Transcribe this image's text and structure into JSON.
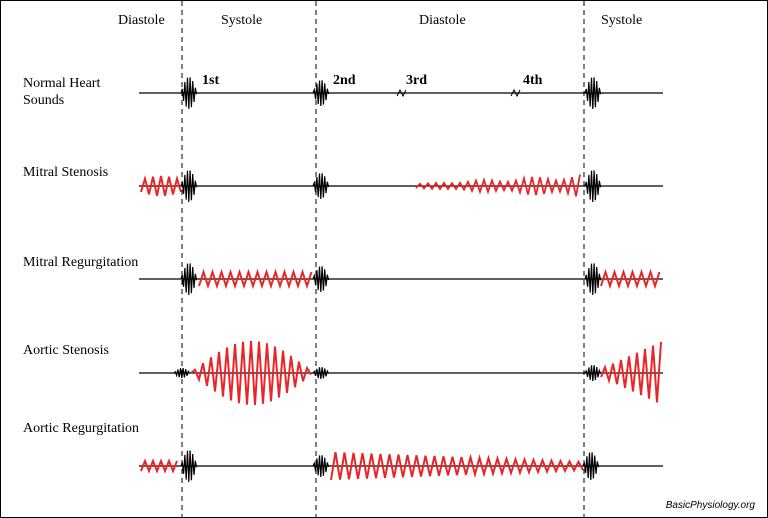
{
  "phases": [
    "Diastole",
    "Systole",
    "Diastole",
    "Systole"
  ],
  "rows": [
    "Normal Heart Sounds",
    "Mitral Stenosis",
    "Mitral Regurgitation",
    "Aortic Stenosis",
    "Aortic Regurgitation"
  ],
  "sounds": [
    "1st",
    "2nd",
    "3rd",
    "4th"
  ],
  "credit": "BasicPhysiology.org"
}
